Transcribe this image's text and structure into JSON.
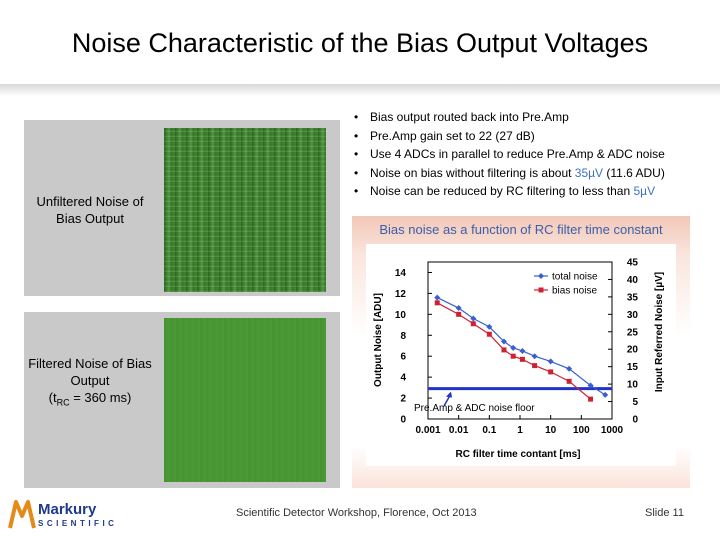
{
  "slide": {
    "title": "Noise Characteristic of the Bias Output Voltages",
    "unfiltered_label": "Unfiltered Noise of Bias Output",
    "filtered_label_line1": "Filtered Noise of Bias Output",
    "filtered_label_line2_prefix": "(t",
    "filtered_label_line2_sub": "RC",
    "filtered_label_line2_suffix": " = 360 ms)",
    "bullets": [
      "Bias output routed back into Pre.Amp",
      "Pre.Amp gain set to 22 (27 dB)",
      "Use 4 ADCs in parallel to reduce Pre.Amp & ADC noise"
    ],
    "bullet4_prefix": "Noise on bias without filtering is about ",
    "bullet4_highlight": "35µV",
    "bullet4_suffix": " (11.6 ADU)",
    "bullet5_prefix": "Noise can be reduced by RC filtering to less than ",
    "bullet5_highlight": "5µV",
    "chart_heading": "Bias noise as a function of RC filter time constant",
    "footer_center": "Scientific Detector Workshop, Florence,  Oct 2013",
    "footer_right": "Slide 11",
    "logo_top": "Markury",
    "logo_bottom": "SCIENTIFIC",
    "accent_color": "#3d73c4",
    "logo_icon": "mercury-m-logo-icon"
  },
  "chart_data": {
    "type": "line",
    "xscale": "log",
    "xlim": [
      0.001,
      1000
    ],
    "ylim": [
      0,
      15
    ],
    "y2lim": [
      0,
      45
    ],
    "xlabel": "RC filter time contant [ms]",
    "ylabel": "Output Noise [ADU]",
    "y2label": "Input Referred Noise [µV]",
    "x_ticks": [
      "0.001",
      "0.01",
      "0.1",
      "1",
      "10",
      "100",
      "1000"
    ],
    "y_ticks": [
      "0",
      "2",
      "4",
      "6",
      "8",
      "10",
      "12",
      "14"
    ],
    "y2_ticks": [
      "0",
      "5",
      "10",
      "15",
      "20",
      "25",
      "30",
      "35",
      "40",
      "45"
    ],
    "legend_position": "top-right",
    "series": [
      {
        "name": "total noise",
        "color": "#3b5fd0",
        "marker": "diamond",
        "x": [
          0.002,
          0.01,
          0.03,
          0.1,
          0.3,
          0.6,
          1.2,
          3,
          10,
          40,
          200,
          600
        ],
        "y": [
          11.6,
          10.6,
          9.6,
          8.8,
          7.4,
          6.8,
          6.5,
          6.0,
          5.5,
          4.8,
          3.2,
          2.3
        ]
      },
      {
        "name": "bias noise",
        "color": "#cc2233",
        "marker": "square",
        "x": [
          0.002,
          0.01,
          0.03,
          0.1,
          0.3,
          0.6,
          1.2,
          3,
          10,
          40,
          200
        ],
        "y": [
          11.1,
          10.0,
          9.1,
          8.1,
          6.6,
          6.0,
          5.7,
          5.1,
          4.5,
          3.6,
          1.9
        ]
      }
    ],
    "reference_line": {
      "label": "Pre.Amp & ADC noise floor",
      "y": 2.9,
      "color": "#2233cc"
    }
  }
}
